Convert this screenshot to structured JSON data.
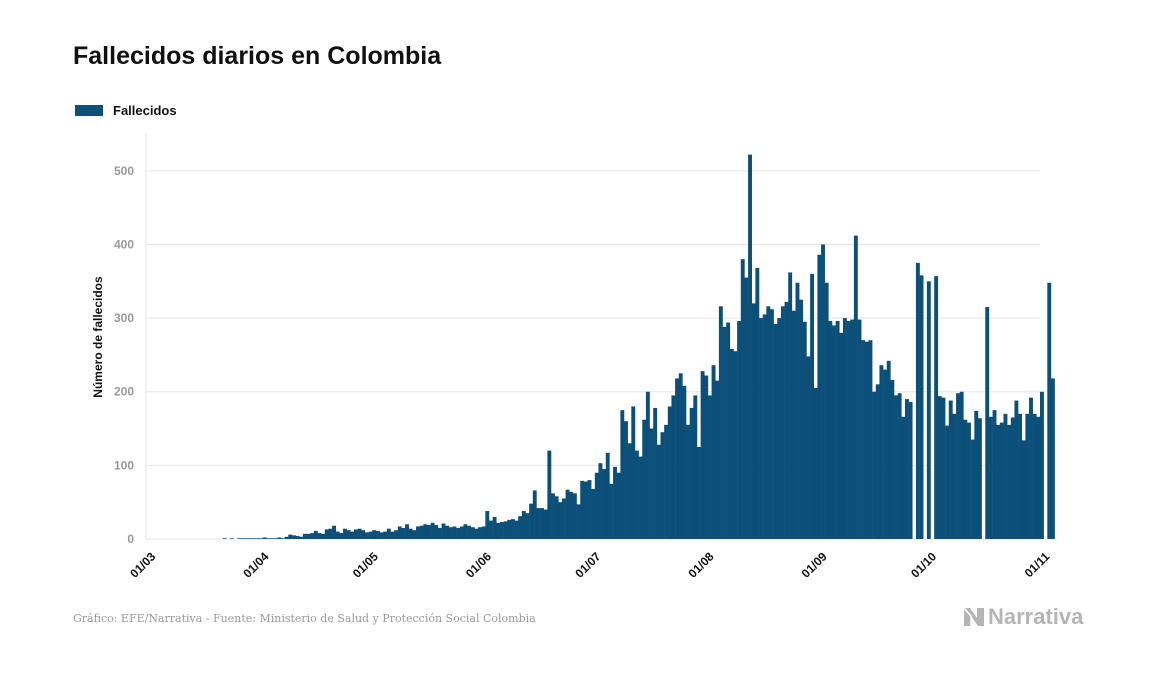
{
  "header": {
    "title": "Fallecidos diarios en Colombia"
  },
  "footer": {
    "source": "Gráfico: EFE/Narrativa - Fuente: Ministerio de Salud y Protección Social Colombia"
  },
  "logo": {
    "text": "Narrativa",
    "icon": "narrativa-logo-icon"
  },
  "colors": {
    "bar": "#0c4f78",
    "grid": "#e6e6e6",
    "tick": "#999999",
    "axis_title": "#111111"
  },
  "chart_data": {
    "type": "bar",
    "title": "Fallecidos diarios en Colombia",
    "xlabel": "",
    "ylabel": "Número de fallecidos",
    "ylim": [
      0,
      550
    ],
    "yticks": [
      0,
      100,
      200,
      300,
      400,
      500
    ],
    "grid": true,
    "legend_position": "top-left",
    "x_start_date": "2020-03-01",
    "x_end_date": "2020-11-01",
    "xticks": [
      "01/03",
      "01/04",
      "01/05",
      "01/06",
      "01/07",
      "01/08",
      "01/09",
      "01/10",
      "01/11"
    ],
    "xtick_dates": [
      "2020-03-01",
      "2020-04-01",
      "2020-05-01",
      "2020-06-01",
      "2020-07-01",
      "2020-08-01",
      "2020-09-01",
      "2020-10-01",
      "2020-11-01"
    ],
    "series": [
      {
        "name": "Fallecidos",
        "start_date": "2020-03-01",
        "values": [
          0,
          0,
          0,
          0,
          0,
          0,
          0,
          0,
          0,
          0,
          0,
          0,
          0,
          0,
          0,
          0,
          0,
          0,
          0,
          0,
          0,
          1,
          0,
          1,
          0,
          1,
          1,
          1,
          1,
          1,
          1,
          1,
          2,
          1,
          1,
          1,
          2,
          1,
          3,
          6,
          5,
          4,
          3,
          7,
          7,
          8,
          11,
          8,
          7,
          13,
          14,
          18,
          10,
          8,
          14,
          12,
          10,
          13,
          14,
          12,
          9,
          10,
          12,
          11,
          9,
          10,
          14,
          10,
          12,
          17,
          15,
          20,
          14,
          12,
          17,
          18,
          20,
          19,
          22,
          19,
          15,
          21,
          18,
          16,
          17,
          15,
          17,
          20,
          18,
          16,
          14,
          16,
          17,
          38,
          25,
          30,
          22,
          23,
          24,
          26,
          27,
          25,
          31,
          38,
          35,
          48,
          66,
          42,
          42,
          40,
          120,
          62,
          58,
          50,
          55,
          67,
          64,
          62,
          47,
          79,
          78,
          80,
          68,
          90,
          103,
          95,
          117,
          75,
          98,
          90,
          175,
          160,
          130,
          180,
          120,
          112,
          162,
          200,
          150,
          178,
          128,
          145,
          155,
          180,
          195,
          218,
          225,
          208,
          155,
          178,
          195,
          125,
          228,
          222,
          195,
          236,
          215,
          316,
          288,
          294,
          258,
          255,
          296,
          380,
          355,
          522,
          320,
          368,
          300,
          305,
          316,
          312,
          292,
          300,
          316,
          322,
          362,
          310,
          348,
          325,
          295,
          248,
          360,
          205,
          386,
          400,
          348,
          296,
          290,
          296,
          280,
          300,
          296,
          298,
          412,
          298,
          270,
          268,
          270,
          200,
          210,
          236,
          230,
          242,
          216,
          195,
          198,
          166,
          190,
          186,
          0,
          375,
          358,
          0,
          350,
          0,
          357,
          194,
          192,
          154,
          188,
          170,
          198,
          200,
          162,
          158,
          135,
          174,
          164,
          0,
          315,
          166,
          175,
          155,
          158,
          170,
          155,
          165,
          188,
          170,
          134,
          170,
          192,
          170,
          166,
          200,
          0,
          348,
          218
        ]
      }
    ]
  }
}
